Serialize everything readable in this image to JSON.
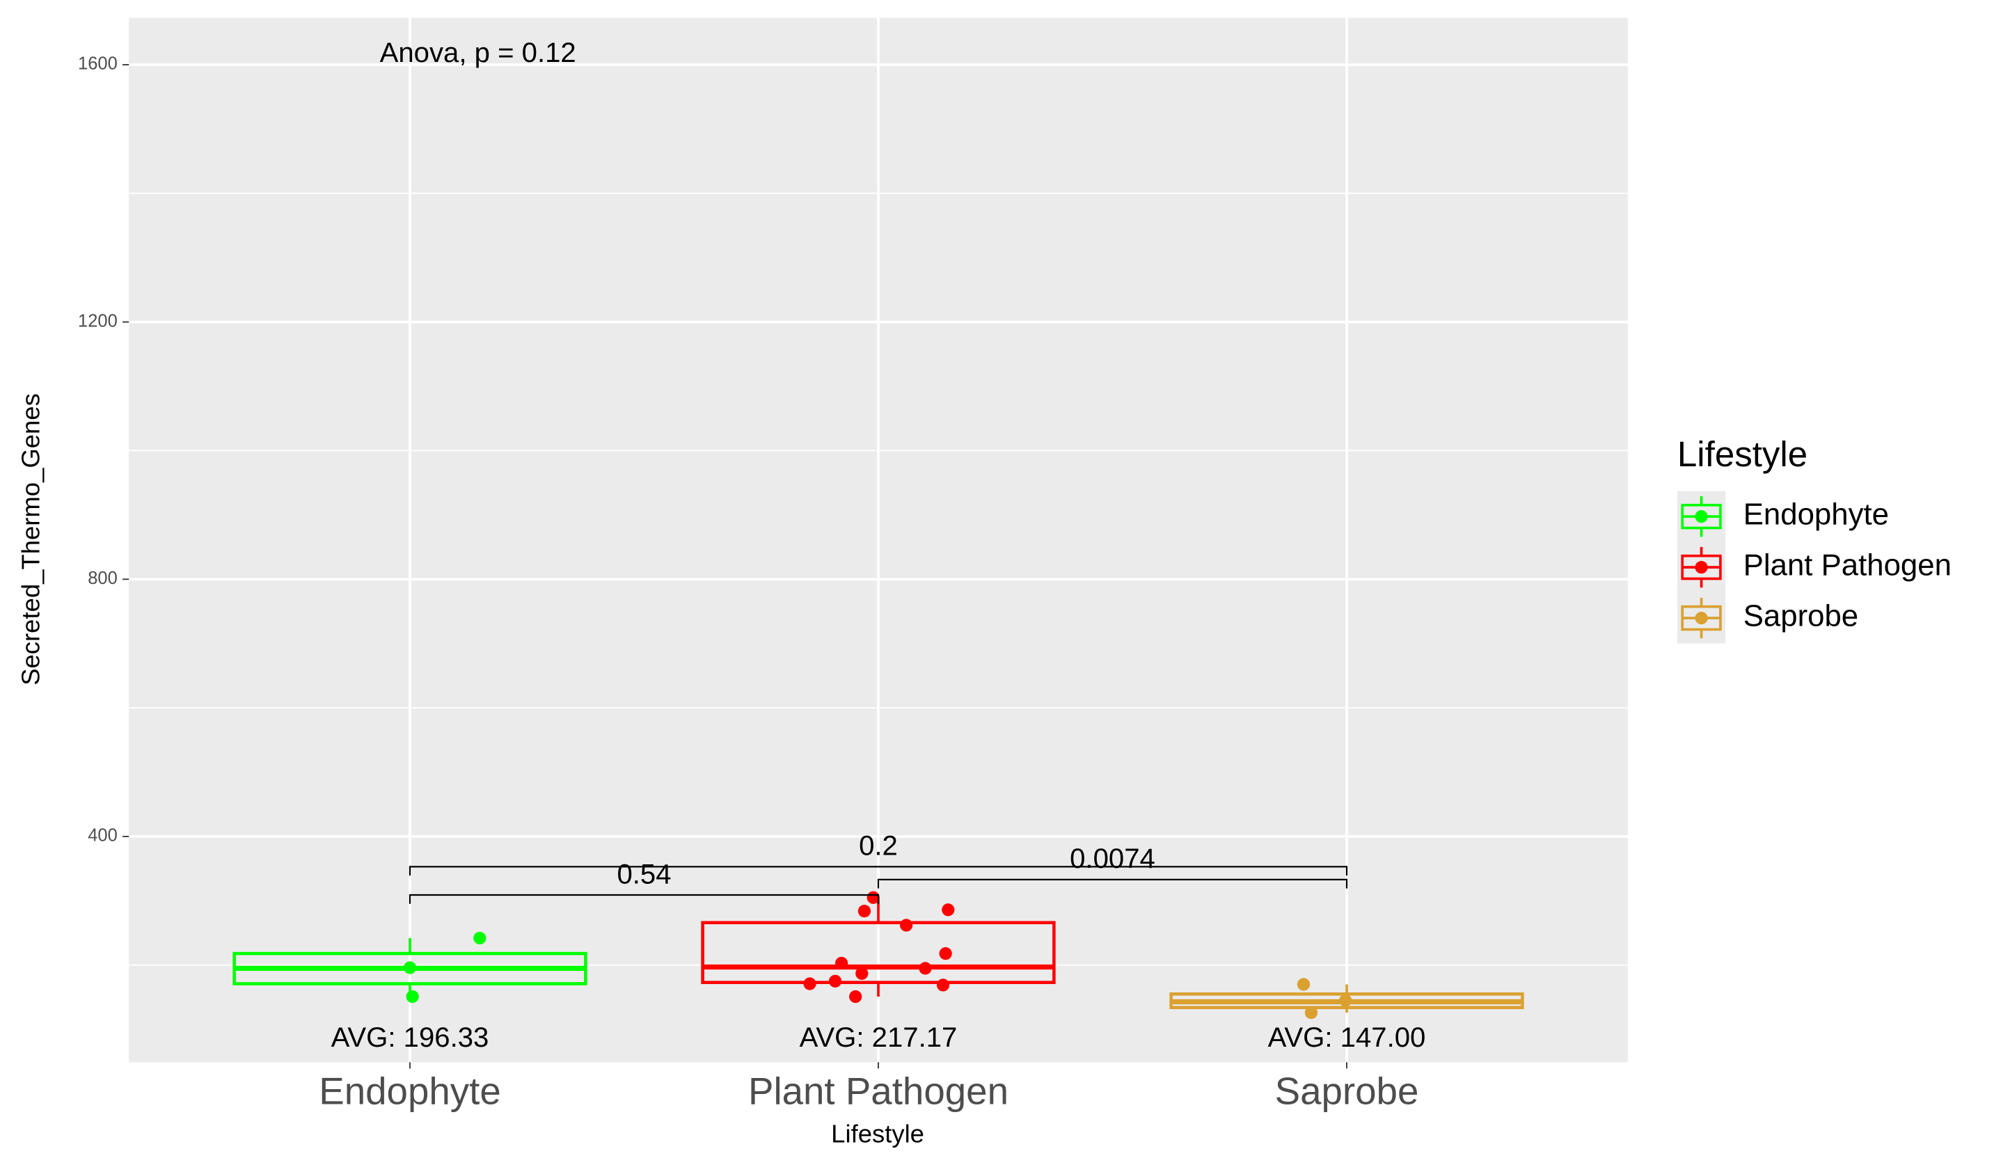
{
  "chart_data": {
    "type": "boxplot",
    "title": "Anova, p = 0.12",
    "xlabel": "Lifestyle",
    "ylabel": "Secreted_Thermo_Genes",
    "legend_title": "Lifestyle",
    "legend_position": "right",
    "grid": true,
    "categories": [
      "Endophyte",
      "Plant Pathogen",
      "Saprobe"
    ],
    "ylim": [
      49,
      1673
    ],
    "yticks": [
      400,
      800,
      1200,
      1600
    ],
    "yminor": [
      200,
      600,
      1000,
      1400
    ],
    "series": [
      {
        "name": "Endophyte",
        "color": "#00ff00",
        "whisker_low": 151,
        "q1": 171,
        "median": 195,
        "q3": 218,
        "whisker_high": 242,
        "points": [
          196,
          242,
          151
        ],
        "avg_label": "AVG: 196.33"
      },
      {
        "name": "Plant Pathogen",
        "color": "#ff0000",
        "whisker_low": 151,
        "q1": 173,
        "median": 197,
        "q3": 266,
        "whisker_high": 305,
        "points": [
          305,
          284,
          286,
          262,
          218,
          203,
          195,
          187,
          171,
          175,
          169,
          151
        ],
        "avg_label": "AVG: 217.17"
      },
      {
        "name": "Saprobe",
        "color": "#daa030",
        "whisker_low": 126,
        "q1": 134,
        "median": 143,
        "q3": 155,
        "whisker_high": 170,
        "points": [
          170,
          145,
          126
        ],
        "avg_label": "AVG: 147.00"
      }
    ],
    "comparisons": [
      {
        "groups": [
          "Endophyte",
          "Plant Pathogen"
        ],
        "y": 309,
        "label": "0.54"
      },
      {
        "groups": [
          "Endophyte",
          "Saprobe"
        ],
        "y": 353,
        "label": "0.2"
      },
      {
        "groups": [
          "Plant Pathogen",
          "Saprobe"
        ],
        "y": 333,
        "label": "0.0074"
      }
    ]
  }
}
